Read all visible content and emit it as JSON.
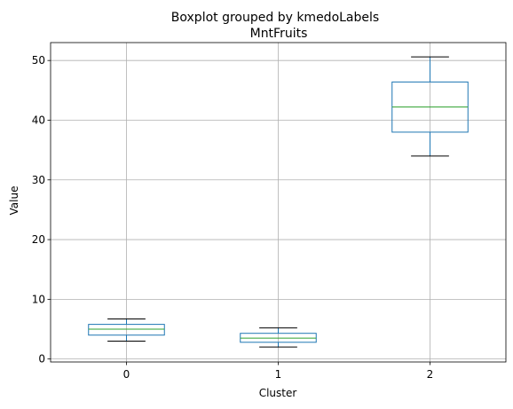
{
  "chart_data": {
    "type": "boxplot",
    "suptitle": "Boxplot grouped by kmedoLabels",
    "title": "MntFruits",
    "xlabel": "Cluster",
    "ylabel": "Value",
    "ylim": [
      -0.5,
      53
    ],
    "y_ticks": [
      0,
      10,
      20,
      30,
      40,
      50
    ],
    "grid": true,
    "categories": [
      "0",
      "1",
      "2"
    ],
    "boxes": [
      {
        "category": "0",
        "whisker_low": 3.0,
        "q1": 4.0,
        "median": 5.0,
        "q3": 5.8,
        "whisker_high": 6.7
      },
      {
        "category": "1",
        "whisker_low": 2.0,
        "q1": 2.8,
        "median": 3.5,
        "q3": 4.3,
        "whisker_high": 5.2
      },
      {
        "category": "2",
        "whisker_low": 34.0,
        "q1": 38.0,
        "median": 42.2,
        "q3": 46.4,
        "whisker_high": 50.6
      }
    ],
    "colors": {
      "box": "#1f77b4",
      "median": "#2ca02c",
      "whisker_cap": "#000000",
      "grid": "#b0b0b0"
    }
  }
}
